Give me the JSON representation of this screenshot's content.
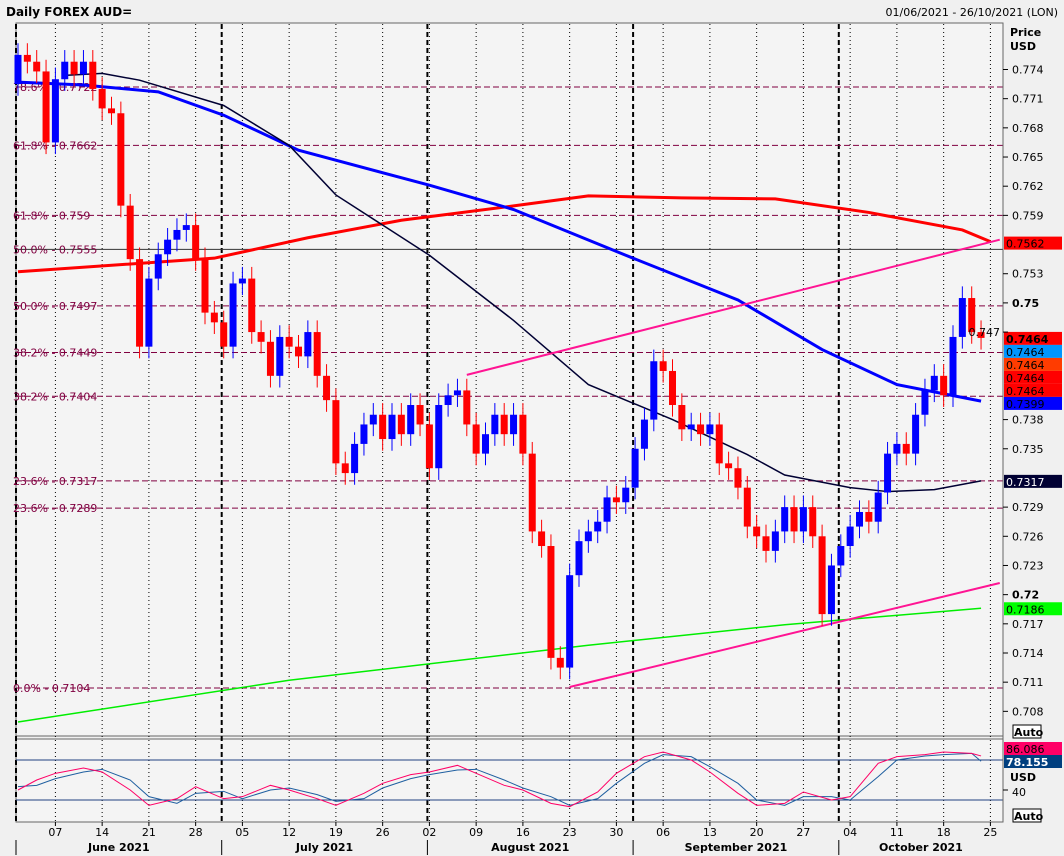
{
  "header": {
    "title": "Daily FOREX AUD=",
    "date_range": "01/06/2021 - 26/10/2021 (LON)"
  },
  "axis": {
    "price_label": "Price",
    "currency_label": "USD",
    "auto_label": "Auto",
    "osc_currency_label": "USD",
    "osc_tick": "40",
    "osc_auto_label": "Auto"
  },
  "chart_data": {
    "type": "candlestick",
    "title": "Daily FOREX AUD=",
    "first_date": "2021-06-01",
    "ylim": [
      0.7055,
      0.7775
    ],
    "grid": true,
    "colors": {
      "up": "#0000ff",
      "down": "#ff0000",
      "background": "#f4f4f4",
      "fib": "#800040",
      "trend": "#ff1493"
    },
    "first_open": 0.7725,
    "closes": [
      0.7755,
      0.7748,
      0.7738,
      0.7665,
      0.773,
      0.7748,
      0.7735,
      0.7748,
      0.772,
      0.77,
      0.7695,
      0.76,
      0.7545,
      0.7455,
      0.7525,
      0.755,
      0.7565,
      0.7575,
      0.758,
      0.7545,
      0.749,
      0.748,
      0.7455,
      0.752,
      0.7525,
      0.747,
      0.746,
      0.7425,
      0.7465,
      0.7455,
      0.7445,
      0.747,
      0.7425,
      0.74,
      0.7335,
      0.7325,
      0.7355,
      0.7375,
      0.7385,
      0.736,
      0.7385,
      0.7365,
      0.7395,
      0.7375,
      0.733,
      0.7395,
      0.7405,
      0.741,
      0.7375,
      0.7345,
      0.7365,
      0.7385,
      0.7365,
      0.7385,
      0.7345,
      0.7265,
      0.725,
      0.7135,
      0.7125,
      0.722,
      0.7255,
      0.7265,
      0.7275,
      0.73,
      0.7295,
      0.731,
      0.735,
      0.738,
      0.744,
      0.743,
      0.7395,
      0.737,
      0.7375,
      0.7365,
      0.7375,
      0.7335,
      0.733,
      0.731,
      0.727,
      0.726,
      0.7245,
      0.7265,
      0.729,
      0.7265,
      0.729,
      0.726,
      0.718,
      0.723,
      0.725,
      0.727,
      0.7285,
      0.7275,
      0.7305,
      0.7345,
      0.7355,
      0.7345,
      0.7385,
      0.741,
      0.7425,
      0.7405,
      0.7465,
      0.7505,
      0.747,
      0.7464
    ],
    "price_ticks": [
      "0.774",
      "0.771",
      "0.768",
      "0.765",
      "0.762",
      "0.759",
      "0.753",
      "0.75",
      "0.747",
      "0.738",
      "0.735",
      "0.729",
      "0.726",
      "0.723",
      "0.72",
      "0.717",
      "0.714",
      "0.711",
      "0.708"
    ],
    "bold_ticks": [
      "0.75",
      "0.72"
    ],
    "x_ticks": [
      {
        "date": "2021-06-07",
        "label": "07"
      },
      {
        "date": "2021-06-14",
        "label": "14"
      },
      {
        "date": "2021-06-21",
        "label": "21"
      },
      {
        "date": "2021-06-28",
        "label": "28"
      },
      {
        "date": "2021-07-05",
        "label": "05"
      },
      {
        "date": "2021-07-12",
        "label": "12"
      },
      {
        "date": "2021-07-19",
        "label": "19"
      },
      {
        "date": "2021-07-26",
        "label": "26"
      },
      {
        "date": "2021-08-02",
        "label": "02"
      },
      {
        "date": "2021-08-09",
        "label": "09"
      },
      {
        "date": "2021-08-16",
        "label": "16"
      },
      {
        "date": "2021-08-23",
        "label": "23"
      },
      {
        "date": "2021-08-30",
        "label": "30"
      },
      {
        "date": "2021-09-06",
        "label": "06"
      },
      {
        "date": "2021-09-13",
        "label": "13"
      },
      {
        "date": "2021-09-20",
        "label": "20"
      },
      {
        "date": "2021-09-27",
        "label": "27"
      },
      {
        "date": "2021-10-04",
        "label": "04"
      },
      {
        "date": "2021-10-11",
        "label": "11"
      },
      {
        "date": "2021-10-18",
        "label": "18"
      },
      {
        "date": "2021-10-25",
        "label": "25"
      }
    ],
    "months": [
      {
        "date": "2021-06-01",
        "label": "June 2021"
      },
      {
        "date": "2021-07-01",
        "label": "July 2021"
      },
      {
        "date": "2021-08-02",
        "label": "August 2021"
      },
      {
        "date": "2021-09-01",
        "label": "September 2021"
      },
      {
        "date": "2021-10-01",
        "label": "October 2021"
      }
    ],
    "fib_levels": [
      {
        "label": "78.6% - 0.7722",
        "value": 0.7722
      },
      {
        "label": "61.8% - 0.7662",
        "value": 0.7662
      },
      {
        "label": "61.8% - 0.759",
        "value": 0.759
      },
      {
        "label": "50.0% - 0.7555",
        "value": 0.7555,
        "solid": true
      },
      {
        "label": "50.0% - 0.7497",
        "value": 0.7497
      },
      {
        "label": "38.2% - 0.7449",
        "value": 0.7449
      },
      {
        "label": "38.2% - 0.7404",
        "value": 0.7404
      },
      {
        "label": "23.6% - 0.7317",
        "value": 0.7317
      },
      {
        "label": "23.6% - 0.7289",
        "value": 0.7289
      },
      {
        "label": "0.0% - 0.7104",
        "value": 0.7104
      }
    ],
    "moving_averages": [
      {
        "color": "#ff0000",
        "width": 3,
        "points": [
          [
            "2021-06-01",
            0.7532
          ],
          [
            "2021-06-30",
            0.7546
          ],
          [
            "2021-07-14",
            0.7567
          ],
          [
            "2021-07-28",
            0.7585
          ],
          [
            "2021-08-16",
            0.7601
          ],
          [
            "2021-08-25",
            0.761
          ],
          [
            "2021-09-08",
            0.7608
          ],
          [
            "2021-09-22",
            0.7607
          ],
          [
            "2021-10-06",
            0.7593
          ],
          [
            "2021-10-20",
            0.7575
          ],
          [
            "2021-10-25",
            0.7563
          ]
        ]
      },
      {
        "color": "#0000ff",
        "width": 3,
        "points": [
          [
            "2021-06-01",
            0.7727
          ],
          [
            "2021-06-10",
            0.7724
          ],
          [
            "2021-06-22",
            0.7717
          ],
          [
            "2021-07-01",
            0.7693
          ],
          [
            "2021-07-13",
            0.7657
          ],
          [
            "2021-08-02",
            0.7621
          ],
          [
            "2021-08-13",
            0.7596
          ],
          [
            "2021-08-31",
            0.7549
          ],
          [
            "2021-09-16",
            0.7503
          ],
          [
            "2021-09-29",
            0.7452
          ],
          [
            "2021-10-11",
            0.7416
          ],
          [
            "2021-10-22",
            0.7399
          ]
        ]
      },
      {
        "color": "#000033",
        "width": 1.5,
        "points": [
          [
            "2021-06-08",
            0.7734
          ],
          [
            "2021-06-14",
            0.7736
          ],
          [
            "2021-06-18",
            0.7729
          ],
          [
            "2021-07-01",
            0.7703
          ],
          [
            "2021-07-12",
            0.7662
          ],
          [
            "2021-07-19",
            0.7611
          ],
          [
            "2021-08-02",
            0.7549
          ],
          [
            "2021-08-13",
            0.7482
          ],
          [
            "2021-08-25",
            0.7416
          ],
          [
            "2021-09-07",
            0.738
          ],
          [
            "2021-09-17",
            0.7344
          ],
          [
            "2021-09-23",
            0.7323
          ],
          [
            "2021-10-04",
            0.731
          ],
          [
            "2021-10-08",
            0.7306
          ],
          [
            "2021-10-15",
            0.7308
          ],
          [
            "2021-10-22",
            0.7317
          ]
        ]
      },
      {
        "color": "#00ee00",
        "width": 1.5,
        "points": [
          [
            "2021-06-01",
            0.7069
          ],
          [
            "2021-07-12",
            0.7112
          ],
          [
            "2021-08-25",
            0.7148
          ],
          [
            "2021-09-23",
            0.7169
          ],
          [
            "2021-10-22",
            0.7186
          ]
        ]
      }
    ],
    "trendlines": [
      {
        "from": [
          "2021-08-06",
          0.7426
        ],
        "to": [
          "2021-10-26",
          0.7565
        ]
      },
      {
        "from": [
          "2021-08-23",
          0.7105
        ],
        "to": [
          "2021-10-26",
          0.7212
        ]
      }
    ],
    "price_labels": [
      {
        "text": "0.7562",
        "value": 0.7562,
        "bg": "#ff0000",
        "fg": "#000000"
      },
      {
        "text": "0.7464",
        "value": 0.7464,
        "bg": "#ff0000",
        "fg": "#000000",
        "bold": true
      },
      {
        "text": "0.7464",
        "value": 0.7464,
        "bg": "#0096ff",
        "fg": "#000000"
      },
      {
        "text": "0.7464",
        "value": 0.7464,
        "bg": "#ff3c00",
        "fg": "#000000"
      },
      {
        "text": "0.7464",
        "value": 0.7464,
        "bg": "#ff0000",
        "fg": "#000000"
      },
      {
        "text": "0.7464",
        "value": 0.7464,
        "bg": "#ff0000",
        "fg": "#000000"
      },
      {
        "text": "0.7399",
        "value": 0.7399,
        "bg": "#0000ff",
        "fg": "#000000"
      },
      {
        "text": "0.7317",
        "value": 0.7317,
        "bg": "#000033",
        "fg": "#ffffff"
      },
      {
        "text": "0.7186",
        "value": 0.7186,
        "bg": "#00ff00",
        "fg": "#000000"
      }
    ],
    "oscillator": {
      "ylim": [
        0,
        100
      ],
      "levels": [
        80,
        20
      ],
      "k_color": "#ff0066",
      "d_color": "#1f5fa0",
      "k_label": "86.086",
      "d_label": "78.155",
      "points": [
        [
          "2021-06-01",
          35,
          40
        ],
        [
          "2021-06-03",
          50,
          42
        ],
        [
          "2021-06-07",
          60,
          52
        ],
        [
          "2021-06-10",
          68,
          62
        ],
        [
          "2021-06-14",
          62,
          66
        ],
        [
          "2021-06-17",
          35,
          50
        ],
        [
          "2021-06-21",
          12,
          25
        ],
        [
          "2021-06-24",
          22,
          15
        ],
        [
          "2021-06-28",
          40,
          30
        ],
        [
          "2021-07-01",
          22,
          33
        ],
        [
          "2021-07-05",
          25,
          22
        ],
        [
          "2021-07-08",
          42,
          35
        ],
        [
          "2021-07-12",
          35,
          38
        ],
        [
          "2021-07-15",
          22,
          28
        ],
        [
          "2021-07-19",
          12,
          18
        ],
        [
          "2021-07-22",
          30,
          22
        ],
        [
          "2021-07-26",
          45,
          38
        ],
        [
          "2021-07-29",
          58,
          52
        ],
        [
          "2021-08-02",
          62,
          58
        ],
        [
          "2021-08-05",
          72,
          65
        ],
        [
          "2021-08-09",
          60,
          66
        ],
        [
          "2021-08-12",
          42,
          50
        ],
        [
          "2021-08-16",
          35,
          38
        ],
        [
          "2021-08-19",
          15,
          25
        ],
        [
          "2021-08-23",
          10,
          12
        ],
        [
          "2021-08-26",
          32,
          22
        ],
        [
          "2021-08-30",
          60,
          45
        ],
        [
          "2021-09-02",
          85,
          75
        ],
        [
          "2021-09-06",
          92,
          88
        ],
        [
          "2021-09-09",
          80,
          85
        ],
        [
          "2021-09-13",
          62,
          70
        ],
        [
          "2021-09-16",
          30,
          45
        ],
        [
          "2021-09-20",
          12,
          20
        ],
        [
          "2021-09-23",
          15,
          12
        ],
        [
          "2021-09-27",
          32,
          25
        ],
        [
          "2021-09-30",
          20,
          25
        ],
        [
          "2021-10-04",
          25,
          20
        ],
        [
          "2021-10-07",
          75,
          55
        ],
        [
          "2021-10-11",
          85,
          80
        ],
        [
          "2021-10-14",
          88,
          86
        ],
        [
          "2021-10-18",
          92,
          88
        ],
        [
          "2021-10-21",
          90,
          90
        ],
        [
          "2021-10-22",
          86.086,
          78.155
        ]
      ]
    }
  }
}
